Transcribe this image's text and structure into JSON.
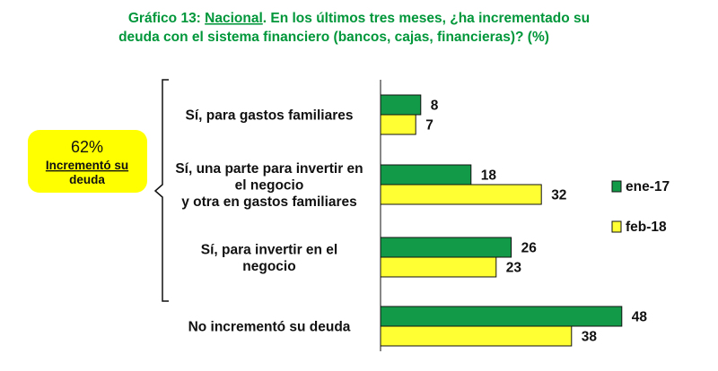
{
  "chart_data": {
    "type": "bar",
    "orientation": "horizontal",
    "title_prefix": "Gráfico 13: ",
    "title_scope": "Nacional",
    "title_line1_rest": ". En los últimos tres meses, ¿ha incrementado su",
    "title_line2": "deuda con el sistema financiero (bancos, cajas, financieras)?  (%)",
    "categories": [
      [
        "Sí, para gastos familiares"
      ],
      [
        "Sí, una parte para invertir en",
        "el negocio",
        "y otra en gastos familiares"
      ],
      [
        "Sí, para invertir en el",
        "negocio"
      ],
      [
        "No incrementó su deuda"
      ]
    ],
    "series": [
      {
        "name": "ene-17",
        "color": "#129a48",
        "values": [
          8,
          18,
          26,
          48
        ]
      },
      {
        "name": "feb-18",
        "color": "#ffff33",
        "values": [
          7,
          32,
          23,
          38
        ]
      }
    ],
    "xlim": [
      0,
      50
    ],
    "grid": false,
    "legend_position": "right",
    "callout": {
      "percent": "62%",
      "line1": "Incrementó su",
      "line2": "deuda",
      "color": "#ffff00",
      "bracket_covers": "first three categories"
    }
  }
}
